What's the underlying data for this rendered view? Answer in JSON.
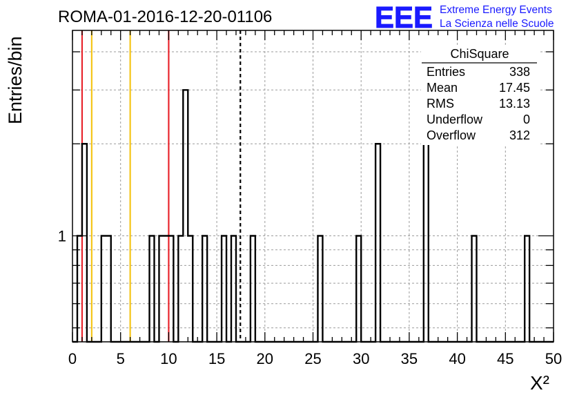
{
  "chart_data": {
    "type": "bar",
    "title": "ROMA-01-2016-12-20-01106",
    "xlabel": "X²",
    "ylabel": "Entries/bin",
    "xlim": [
      0,
      50
    ],
    "ylim": [
      0.45,
      4.7
    ],
    "yscale": "log",
    "grid": true,
    "bin_width": 0.5,
    "x_ticks": [
      "0",
      "5",
      "10",
      "15",
      "20",
      "25",
      "30",
      "35",
      "40",
      "45",
      "50"
    ],
    "y_ticks": [
      "1"
    ],
    "bins": [
      {
        "x": 0.5,
        "value": 1
      },
      {
        "x": 1.0,
        "value": 2
      },
      {
        "x": 3.0,
        "value": 1
      },
      {
        "x": 3.5,
        "value": 1
      },
      {
        "x": 8.0,
        "value": 1
      },
      {
        "x": 9.0,
        "value": 1
      },
      {
        "x": 9.5,
        "value": 1
      },
      {
        "x": 10.0,
        "value": 1
      },
      {
        "x": 11.0,
        "value": 1
      },
      {
        "x": 11.5,
        "value": 3
      },
      {
        "x": 12.0,
        "value": 1
      },
      {
        "x": 13.5,
        "value": 1
      },
      {
        "x": 15.5,
        "value": 1
      },
      {
        "x": 16.5,
        "value": 1
      },
      {
        "x": 18.5,
        "value": 1
      },
      {
        "x": 25.5,
        "value": 1
      },
      {
        "x": 29.5,
        "value": 1
      },
      {
        "x": 31.5,
        "value": 2
      },
      {
        "x": 36.5,
        "value": 2
      },
      {
        "x": 41.5,
        "value": 1
      },
      {
        "x": 47.0,
        "value": 1
      }
    ],
    "vlines": [
      {
        "x": 1.0,
        "color": "#e8262e",
        "style": "solid"
      },
      {
        "x": 2.0,
        "color": "#f5c518",
        "style": "solid"
      },
      {
        "x": 6.0,
        "color": "#f5c518",
        "style": "solid"
      },
      {
        "x": 10.0,
        "color": "#e8262e",
        "style": "solid"
      },
      {
        "x": 17.45,
        "color": "#000000",
        "style": "dashed"
      }
    ],
    "stats": {
      "title": "ChiSquare",
      "rows": [
        {
          "label": "Entries",
          "value": "338"
        },
        {
          "label": "Mean",
          "value": "17.45"
        },
        {
          "label": "RMS",
          "value": "13.13"
        },
        {
          "label": "Underflow",
          "value": "0"
        },
        {
          "label": "Overflow",
          "value": "312"
        }
      ]
    },
    "logo": {
      "mark": "EEE",
      "line1": "Extreme Energy Events",
      "line2": "La Scienza nelle Scuole",
      "color": "#1a1aff"
    }
  }
}
